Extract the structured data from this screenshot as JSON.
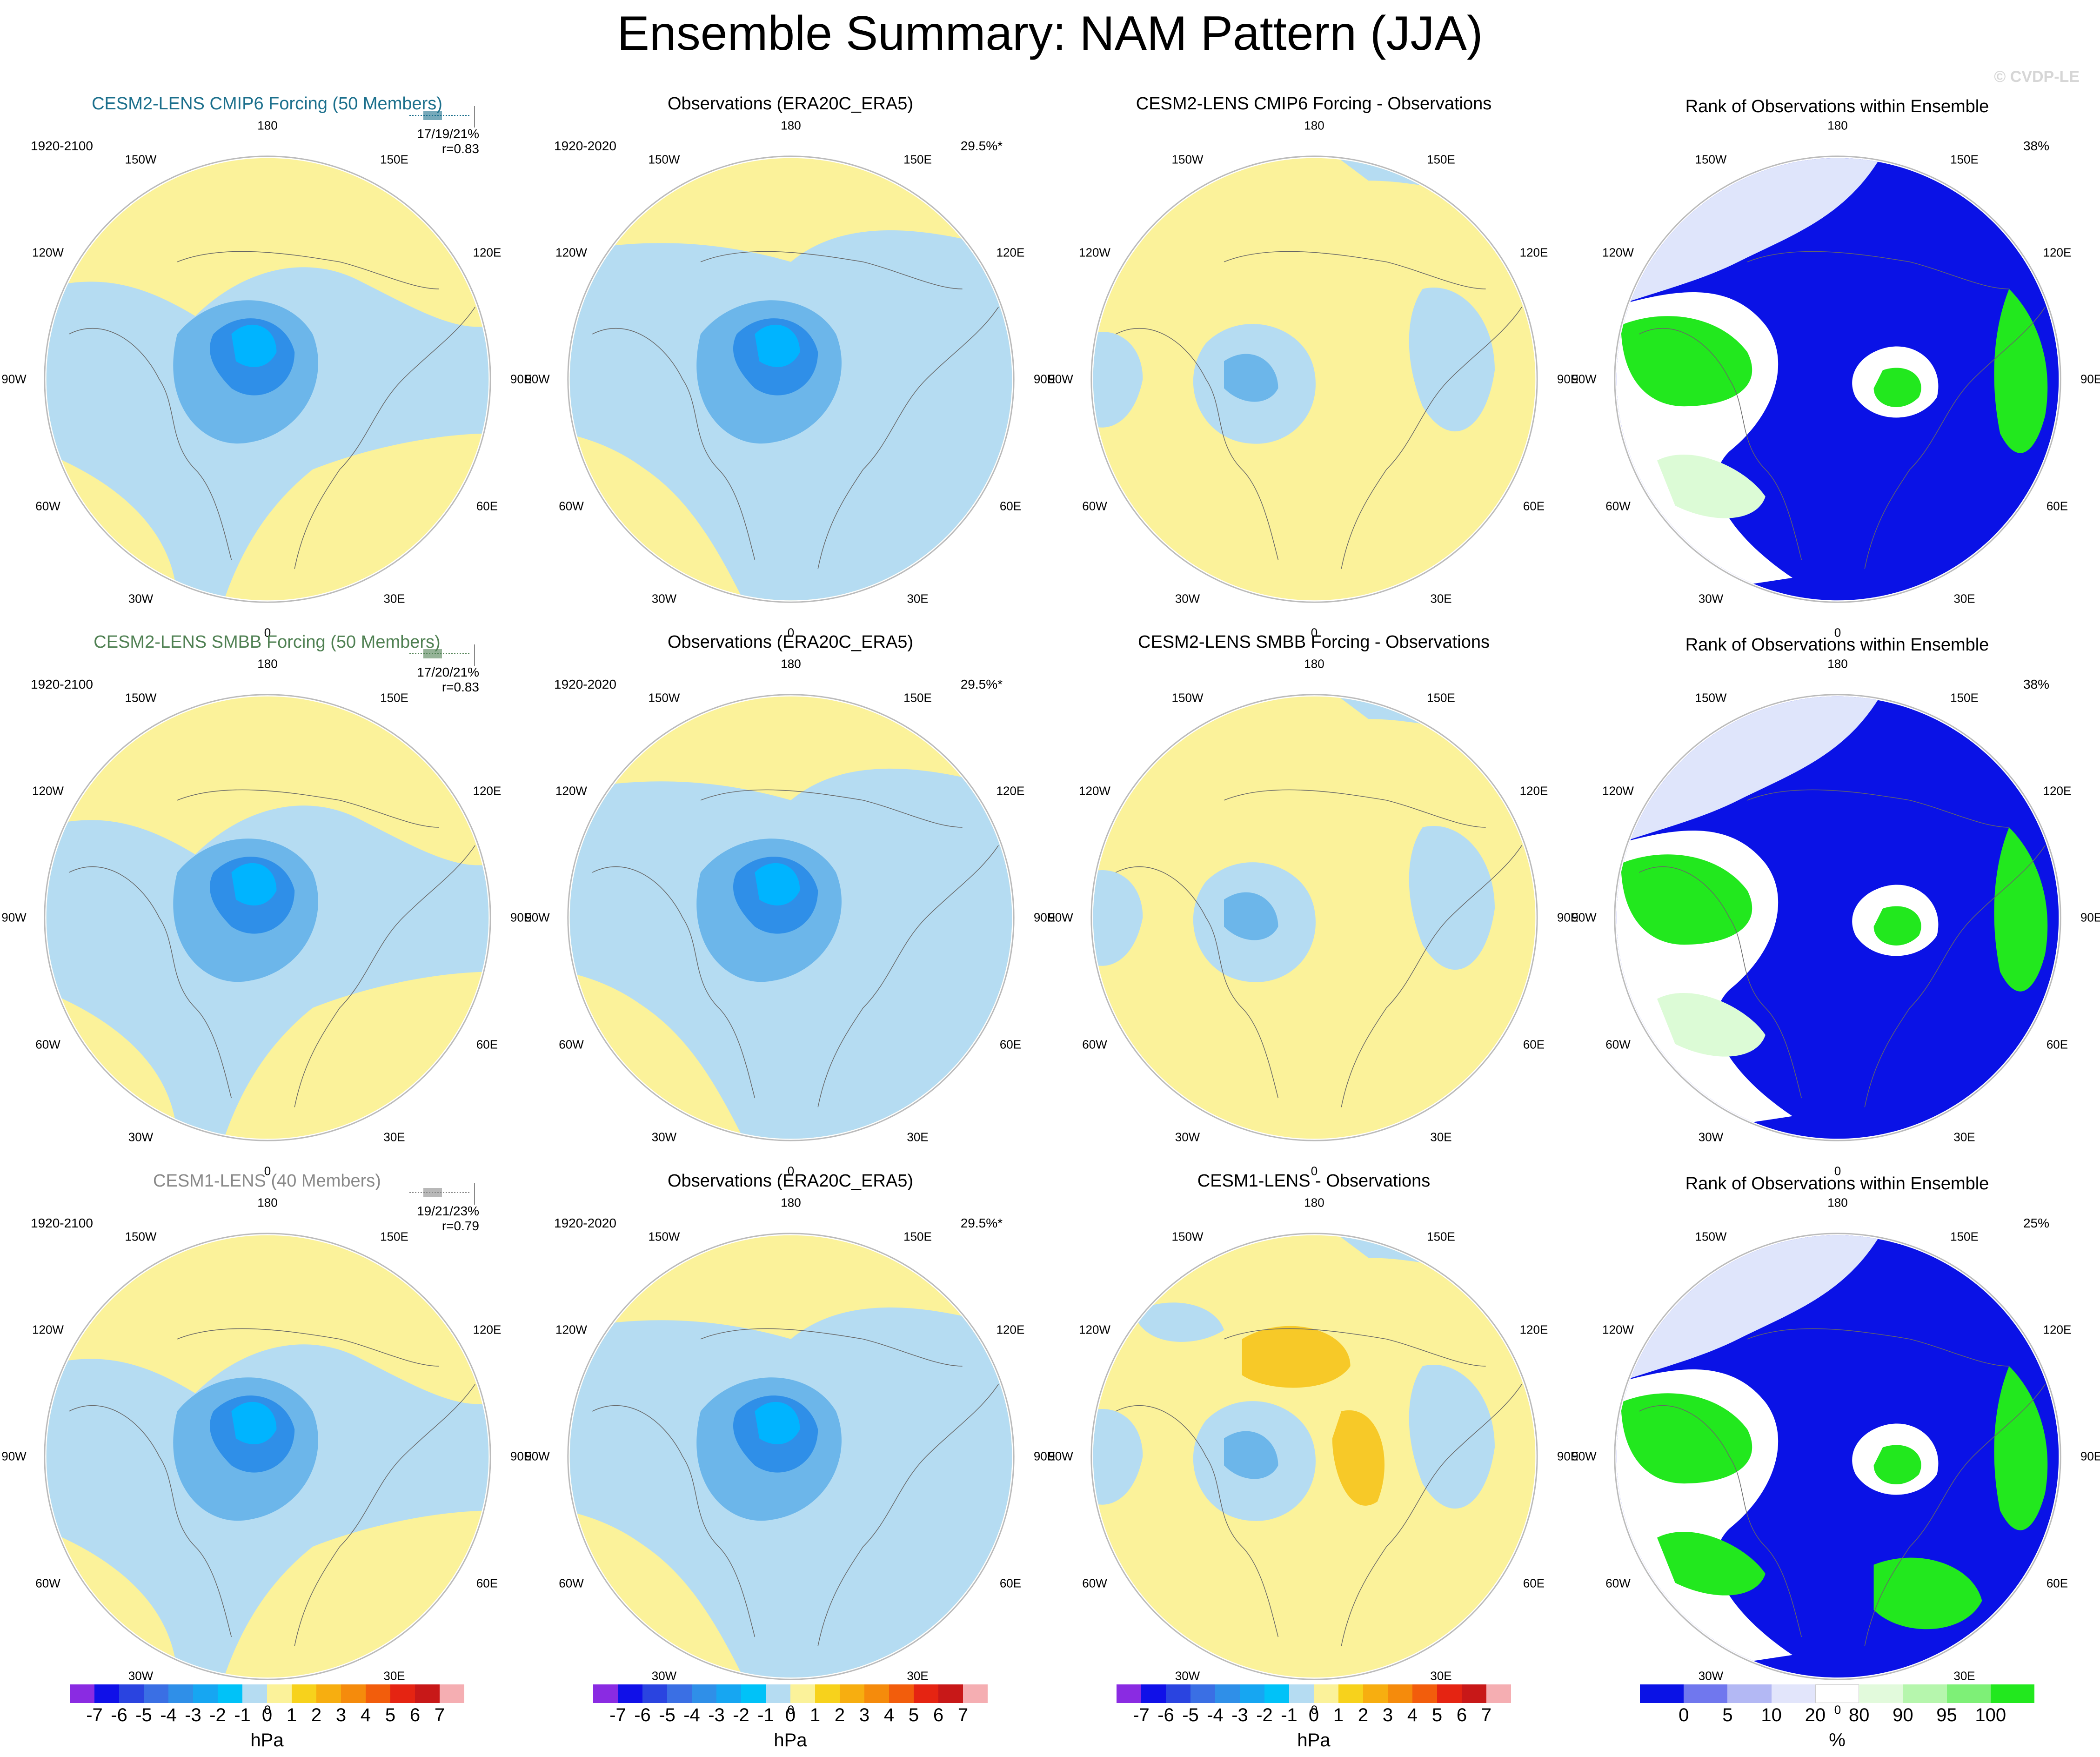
{
  "title": "Ensemble Summary: NAM Pattern (JJA)",
  "watermark": "© CVDP-LE",
  "lon_labels": [
    "180",
    "150E",
    "120E",
    "90E",
    "60E",
    "30E",
    "0",
    "30W",
    "60W",
    "90W",
    "120W",
    "150W"
  ],
  "colors": {
    "neg_light": "#b5dcf2",
    "neg_mid": "#6cb6ea",
    "neg_dark": "#2f8fe8",
    "neg_core": "#00b4ff",
    "pos_light": "#fbf29a",
    "pos_mid": "#f7c928",
    "rank_blue": "#0a12e6",
    "rank_green": "#22e81e",
    "rank_white": "#ffffff",
    "rank_lightblue": "#dfe5fb",
    "rank_lightgreen": "#dcfbd6",
    "grid": "#bbbbbb"
  },
  "rows": [
    {
      "model": {
        "title": "CESM2-LENS CMIP6 Forcing (50 Members)",
        "title_color": "#1b6f8c",
        "range": "1920-2100",
        "stat1": "17/19/21%",
        "stat2": "r=0.83"
      },
      "obs": {
        "title": "Observations (ERA20C_ERA5)",
        "range": "1920-2020",
        "stat": "29.5%*"
      },
      "diff": {
        "title": "CESM2-LENS CMIP6 Forcing - Observations"
      },
      "rank": {
        "title": "Rank of Observations within Ensemble",
        "stat": "38%"
      }
    },
    {
      "model": {
        "title": "CESM2-LENS SMBB Forcing (50 Members)",
        "title_color": "#4f8052",
        "range": "1920-2100",
        "stat1": "17/20/21%",
        "stat2": "r=0.83"
      },
      "obs": {
        "title": "Observations (ERA20C_ERA5)",
        "range": "1920-2020",
        "stat": "29.5%*"
      },
      "diff": {
        "title": "CESM2-LENS SMBB Forcing - Observations"
      },
      "rank": {
        "title": "Rank of Observations within Ensemble",
        "stat": "38%"
      }
    },
    {
      "model": {
        "title": "CESM1-LENS (40 Members)",
        "title_color": "#888888",
        "range": "1920-2100",
        "stat1": "19/21/23%",
        "stat2": "r=0.79"
      },
      "obs": {
        "title": "Observations (ERA20C_ERA5)",
        "range": "1920-2020",
        "stat": "29.5%*"
      },
      "diff": {
        "title": "CESM1-LENS - Observations"
      },
      "rank": {
        "title": "Rank of Observations within Ensemble",
        "stat": "25%"
      }
    }
  ],
  "colorbar_hpa": {
    "units": "hPa",
    "ticks": [
      "-7",
      "-6",
      "-5",
      "-4",
      "-3",
      "-2",
      "-1",
      "0",
      "1",
      "2",
      "3",
      "4",
      "5",
      "6",
      "7"
    ],
    "colors": [
      "#8a2be2",
      "#1010e8",
      "#2a44e0",
      "#3a6fe4",
      "#2f8fe8",
      "#16a6f2",
      "#00c2f8",
      "#b5dcf2",
      "#fbf29a",
      "#f7d21c",
      "#f7ae10",
      "#f58b0c",
      "#f25d0c",
      "#e52412",
      "#c81818",
      "#f5aeb2"
    ]
  },
  "colorbar_rank": {
    "units": "%",
    "ticks": [
      "0",
      "5",
      "10",
      "20",
      "80",
      "90",
      "95",
      "100"
    ],
    "colors": [
      "#0a12e6",
      "#7077ee",
      "#b3b8f4",
      "#e2e5fb",
      "#ffffff",
      "#e2fadc",
      "#b6f6ad",
      "#7ef077",
      "#22e81e"
    ]
  }
}
